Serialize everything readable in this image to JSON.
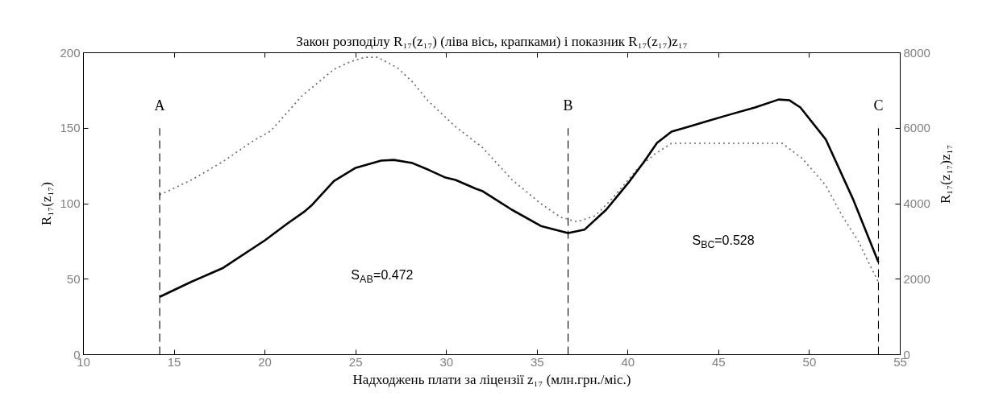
{
  "chart_data": {
    "type": "line",
    "title": "Закон розподілу R₁₇(z₁₇) (ліва вісь, крапками) і показник R₁₇(z₁₇)z₁₇",
    "xlabel": "Надходжень плати за ліцензії z₁₇ (млн.грн./міс.)",
    "ylabel": "R₁₇(z₁₇)",
    "y2label": "R₁₇(z₁₇)z₁₇",
    "xlim": [
      10,
      55
    ],
    "xticks": [
      10,
      15,
      20,
      25,
      30,
      35,
      40,
      45,
      50,
      55
    ],
    "ylim": [
      0,
      200
    ],
    "yticks": [
      0,
      50,
      100,
      150,
      200
    ],
    "y2lim": [
      0,
      8000
    ],
    "y2ticks": [
      0,
      2000,
      4000,
      6000,
      8000
    ],
    "series": [
      {
        "color": "#666666",
        "line_style": "dotted",
        "x": [
          14.2,
          14.6,
          16.0,
          17.7,
          19.4,
          20.3,
          21.2,
          22.0,
          22.9,
          23.8,
          24.7,
          25.5,
          26.2,
          27.3,
          28.1,
          29.0,
          30.5,
          32.0,
          33.6,
          35.2,
          36.3,
          37.2,
          38.2,
          39.1,
          40.6,
          41.5,
          42.4,
          48.5,
          49.6,
          50.9,
          51.8,
          52.7,
          53.3,
          53.8
        ],
        "values": [
          106,
          108,
          116,
          128,
          142,
          148,
          160,
          171,
          180,
          189,
          194,
          197,
          197,
          190,
          181,
          168,
          151,
          137,
          116,
          100,
          91,
          88,
          92,
          103,
          124,
          133,
          140,
          140,
          130,
          112,
          92,
          75,
          60,
          48
        ]
      },
      {
        "color": "#000000",
        "line_style": "solid",
        "axis": "y2",
        "x": [
          14.2,
          15.9,
          17.7,
          20.0,
          21.2,
          22.2,
          22.6,
          23.8,
          25.0,
          26.4,
          27.1,
          28.1,
          29.0,
          29.9,
          30.5,
          31.6,
          32.0,
          33.6,
          35.2,
          36.7,
          37.6,
          38.8,
          40.0,
          40.9,
          41.6,
          42.4,
          43.4,
          44.4,
          45.6,
          47.0,
          48.3,
          48.9,
          49.5,
          50.9,
          52.4,
          53.8
        ],
        "values": [
          1530,
          1920,
          2300,
          3030,
          3460,
          3800,
          3970,
          4600,
          4950,
          5140,
          5160,
          5080,
          4900,
          4700,
          4630,
          4400,
          4330,
          3840,
          3410,
          3220,
          3310,
          3840,
          4540,
          5120,
          5610,
          5910,
          6050,
          6190,
          6360,
          6550,
          6760,
          6740,
          6550,
          5700,
          4120,
          2450
        ]
      }
    ],
    "ref_lines": [
      {
        "axis": "x",
        "value": 14.2,
        "label": "A",
        "color": "#000000",
        "line_style": "dashed"
      },
      {
        "axis": "x",
        "value": 36.7,
        "label": "B",
        "color": "#000000",
        "line_style": "dashed"
      },
      {
        "axis": "x",
        "value": 53.8,
        "label": "C",
        "color": "#000000",
        "line_style": "dashed"
      }
    ],
    "annotations": [
      "S$_{AB}$=0.472",
      "S$_{BC}$=0.528"
    ]
  }
}
